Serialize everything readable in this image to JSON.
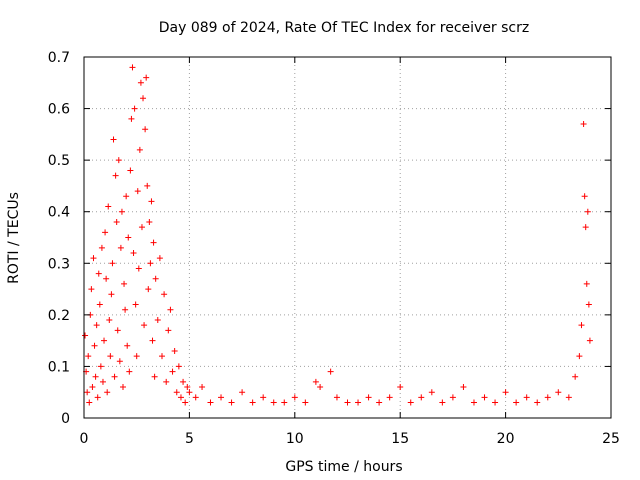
{
  "chart_data": {
    "type": "scatter",
    "title": "Day 089 of 2024, Rate Of TEC Index for receiver scrz",
    "xlabel": "GPS time / hours",
    "ylabel": "ROTI / TECUs",
    "xlim": [
      0,
      25
    ],
    "ylim": [
      0,
      0.7
    ],
    "xticks": [
      0,
      5,
      10,
      15,
      20,
      25
    ],
    "yticks": [
      0,
      0.1,
      0.2,
      0.3,
      0.4,
      0.5,
      0.6,
      0.7
    ],
    "xtick_labels": [
      "0",
      "5",
      "10",
      "15",
      "20",
      "25"
    ],
    "ytick_labels": [
      "0",
      "0.1",
      "0.2",
      "0.3",
      "0.4",
      "0.5",
      "0.6",
      "0.7"
    ],
    "grid": true,
    "marker": "+",
    "color": "#ff0000",
    "series": [
      {
        "name": "ROTI",
        "points": [
          [
            0.05,
            0.16
          ],
          [
            0.1,
            0.09
          ],
          [
            0.15,
            0.05
          ],
          [
            0.2,
            0.12
          ],
          [
            0.25,
            0.03
          ],
          [
            0.3,
            0.2
          ],
          [
            0.35,
            0.25
          ],
          [
            0.4,
            0.06
          ],
          [
            0.45,
            0.31
          ],
          [
            0.5,
            0.14
          ],
          [
            0.55,
            0.08
          ],
          [
            0.6,
            0.18
          ],
          [
            0.65,
            0.04
          ],
          [
            0.7,
            0.28
          ],
          [
            0.75,
            0.22
          ],
          [
            0.8,
            0.1
          ],
          [
            0.85,
            0.33
          ],
          [
            0.9,
            0.07
          ],
          [
            0.95,
            0.15
          ],
          [
            1.0,
            0.36
          ],
          [
            1.05,
            0.27
          ],
          [
            1.1,
            0.05
          ],
          [
            1.15,
            0.41
          ],
          [
            1.2,
            0.19
          ],
          [
            1.25,
            0.12
          ],
          [
            1.3,
            0.24
          ],
          [
            1.35,
            0.3
          ],
          [
            1.4,
            0.54
          ],
          [
            1.45,
            0.08
          ],
          [
            1.5,
            0.47
          ],
          [
            1.55,
            0.38
          ],
          [
            1.6,
            0.17
          ],
          [
            1.65,
            0.5
          ],
          [
            1.7,
            0.11
          ],
          [
            1.75,
            0.33
          ],
          [
            1.8,
            0.4
          ],
          [
            1.85,
            0.06
          ],
          [
            1.9,
            0.26
          ],
          [
            1.95,
            0.21
          ],
          [
            2.0,
            0.43
          ],
          [
            2.05,
            0.14
          ],
          [
            2.1,
            0.35
          ],
          [
            2.15,
            0.09
          ],
          [
            2.2,
            0.48
          ],
          [
            2.25,
            0.58
          ],
          [
            2.3,
            0.68
          ],
          [
            2.35,
            0.32
          ],
          [
            2.4,
            0.6
          ],
          [
            2.45,
            0.22
          ],
          [
            2.5,
            0.12
          ],
          [
            2.55,
            0.44
          ],
          [
            2.6,
            0.29
          ],
          [
            2.65,
            0.52
          ],
          [
            2.7,
            0.65
          ],
          [
            2.75,
            0.37
          ],
          [
            2.8,
            0.62
          ],
          [
            2.85,
            0.18
          ],
          [
            2.9,
            0.56
          ],
          [
            2.95,
            0.66
          ],
          [
            3.0,
            0.45
          ],
          [
            3.05,
            0.25
          ],
          [
            3.1,
            0.38
          ],
          [
            3.15,
            0.3
          ],
          [
            3.2,
            0.42
          ],
          [
            3.25,
            0.15
          ],
          [
            3.3,
            0.34
          ],
          [
            3.35,
            0.08
          ],
          [
            3.4,
            0.27
          ],
          [
            3.5,
            0.19
          ],
          [
            3.6,
            0.31
          ],
          [
            3.7,
            0.12
          ],
          [
            3.8,
            0.24
          ],
          [
            3.9,
            0.07
          ],
          [
            4.0,
            0.17
          ],
          [
            4.1,
            0.21
          ],
          [
            4.2,
            0.09
          ],
          [
            4.3,
            0.13
          ],
          [
            4.4,
            0.05
          ],
          [
            4.5,
            0.1
          ],
          [
            4.6,
            0.04
          ],
          [
            4.7,
            0.07
          ],
          [
            4.8,
            0.03
          ],
          [
            4.9,
            0.06
          ],
          [
            5.0,
            0.05
          ],
          [
            5.3,
            0.04
          ],
          [
            5.6,
            0.06
          ],
          [
            6.0,
            0.03
          ],
          [
            6.5,
            0.04
          ],
          [
            7.0,
            0.03
          ],
          [
            7.5,
            0.05
          ],
          [
            8.0,
            0.03
          ],
          [
            8.5,
            0.04
          ],
          [
            9.0,
            0.03
          ],
          [
            9.5,
            0.03
          ],
          [
            10.0,
            0.04
          ],
          [
            10.5,
            0.03
          ],
          [
            11.0,
            0.07
          ],
          [
            11.2,
            0.06
          ],
          [
            11.7,
            0.09
          ],
          [
            12.0,
            0.04
          ],
          [
            12.5,
            0.03
          ],
          [
            13.0,
            0.03
          ],
          [
            13.5,
            0.04
          ],
          [
            14.0,
            0.03
          ],
          [
            14.5,
            0.04
          ],
          [
            15.0,
            0.06
          ],
          [
            15.5,
            0.03
          ],
          [
            16.0,
            0.04
          ],
          [
            16.5,
            0.05
          ],
          [
            17.0,
            0.03
          ],
          [
            17.5,
            0.04
          ],
          [
            18.0,
            0.06
          ],
          [
            18.5,
            0.03
          ],
          [
            19.0,
            0.04
          ],
          [
            19.5,
            0.03
          ],
          [
            20.0,
            0.05
          ],
          [
            20.5,
            0.03
          ],
          [
            21.0,
            0.04
          ],
          [
            21.5,
            0.03
          ],
          [
            22.0,
            0.04
          ],
          [
            22.5,
            0.05
          ],
          [
            23.0,
            0.04
          ],
          [
            23.3,
            0.08
          ],
          [
            23.5,
            0.12
          ],
          [
            23.6,
            0.18
          ],
          [
            23.7,
            0.57
          ],
          [
            23.75,
            0.43
          ],
          [
            23.8,
            0.37
          ],
          [
            23.85,
            0.26
          ],
          [
            23.9,
            0.4
          ],
          [
            23.95,
            0.22
          ],
          [
            24.0,
            0.15
          ]
        ]
      }
    ]
  }
}
